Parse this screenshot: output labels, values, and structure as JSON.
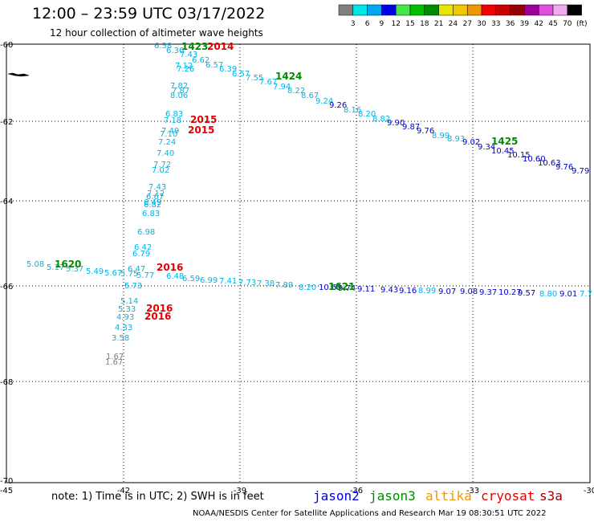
{
  "title": "12:00 – 23:59 UTC 03/17/2022",
  "subtitle": "12 hour collection of altimeter wave heights",
  "colorbar": {
    "colors": [
      "#808080",
      "#00e6e6",
      "#00a8f0",
      "#0000e6",
      "#46e646",
      "#00bf00",
      "#008c00",
      "#e6e600",
      "#f0c800",
      "#f09600",
      "#f00000",
      "#c80000",
      "#960000",
      "#9b009b",
      "#dc50dc",
      "#f0aaf0",
      "#000000"
    ],
    "ticks": [
      "3",
      "6",
      "9",
      "12",
      "15",
      "18",
      "21",
      "24",
      "27",
      "30",
      "33",
      "36",
      "39",
      "42",
      "45",
      "70"
    ],
    "unit": "(ft)"
  },
  "axes": {
    "lon_ticks": [
      "-45",
      "-42",
      "-39",
      "-36",
      "-33",
      "-30"
    ],
    "lat_ticks": [
      "-60",
      "-62",
      "-64",
      "-66",
      "-68",
      "-70"
    ]
  },
  "tracks": [
    {
      "label": "1423",
      "label_color": "#008c00",
      "label2": "2014",
      "label2_color": "#e60000",
      "points": [
        {
          "v": "6.38",
          "c": "#00b4e6"
        },
        {
          "v": "6.36",
          "c": "#00b4e6"
        },
        {
          "v": "7.43",
          "c": "#00b4e6"
        },
        {
          "v": "6.62",
          "c": "#00b4e6"
        },
        {
          "v": "7.12",
          "c": "#00b4e6"
        },
        {
          "v": "7.26",
          "c": "#00b4e6"
        }
      ]
    },
    {
      "label": "1424",
      "label_color": "#008c00",
      "points": [
        {
          "v": "6.57",
          "c": "#00b4e6"
        },
        {
          "v": "6.39",
          "c": "#00b4e6"
        },
        {
          "v": "6.57",
          "c": "#00b4e6"
        },
        {
          "v": "7.55",
          "c": "#00b4e6"
        },
        {
          "v": "7.67",
          "c": "#00b4e6"
        },
        {
          "v": "7.94",
          "c": "#00b4e6"
        },
        {
          "v": "8.22",
          "c": "#00b4e6"
        },
        {
          "v": "8.67",
          "c": "#00b4e6"
        },
        {
          "v": "9.24",
          "c": "#00b4e6"
        },
        {
          "v": "9.26",
          "c": "#0000c8"
        },
        {
          "v": "8.16",
          "c": "#00b4e6"
        },
        {
          "v": "8.20",
          "c": "#00b4e6"
        },
        {
          "v": "8.82",
          "c": "#00b4e6"
        },
        {
          "v": "9.90",
          "c": "#0000c8"
        },
        {
          "v": "9.87",
          "c": "#0000c8"
        },
        {
          "v": "9.76",
          "c": "#0000c8"
        },
        {
          "v": "8.99",
          "c": "#00b4e6"
        },
        {
          "v": "8.93",
          "c": "#00b4e6"
        },
        {
          "v": "9.02",
          "c": "#0000c8"
        }
      ]
    },
    {
      "label": "1425",
      "label_color": "#008c00",
      "points": [
        {
          "v": "9.34",
          "c": "#0000c8"
        },
        {
          "v": "10.45",
          "c": "#0000c8"
        },
        {
          "v": "10.15",
          "c": "#0000c8"
        },
        {
          "v": "10.60",
          "c": "#0000c8"
        },
        {
          "v": "10.63",
          "c": "#0000c8"
        },
        {
          "v": "9.76",
          "c": "#0000c8"
        },
        {
          "v": "9.79",
          "c": "#0000c8"
        }
      ]
    },
    {
      "label": "2015",
      "label_color": "#e60000",
      "label2": "2015",
      "label2_color": "#e60000",
      "points": [
        {
          "v": "7.82",
          "c": "#00b4e6"
        },
        {
          "v": "7.87",
          "c": "#00b4e6"
        },
        {
          "v": "8.06",
          "c": "#00b4e6"
        },
        {
          "v": "6.83",
          "c": "#00b4e6"
        },
        {
          "v": "7.18",
          "c": "#00b4e6"
        },
        {
          "v": "7.49",
          "c": "#00b4e6"
        },
        {
          "v": "7.10",
          "c": "#00b4e6"
        },
        {
          "v": "7.24",
          "c": "#00b4e6"
        },
        {
          "v": "7.40",
          "c": "#00b4e6"
        },
        {
          "v": "7.72",
          "c": "#00b4e6"
        },
        {
          "v": "7.02",
          "c": "#00b4e6"
        },
        {
          "v": "7.43",
          "c": "#00b4e6"
        },
        {
          "v": "7.12",
          "c": "#00b4e6"
        },
        {
          "v": "6.67",
          "c": "#00b4e6"
        },
        {
          "v": "6.49",
          "c": "#00b4e6"
        },
        {
          "v": "6.82",
          "c": "#00b4e6"
        },
        {
          "v": "6.83",
          "c": "#00b4e6"
        },
        {
          "v": "6.98",
          "c": "#00b4e6"
        },
        {
          "v": "6.42",
          "c": "#00b4e6"
        },
        {
          "v": "6.79",
          "c": "#00b4e6"
        }
      ]
    },
    {
      "label": "1620",
      "label_color": "#008c00",
      "label2": "2016",
      "label2_color": "#e60000",
      "points": [
        {
          "v": "5.08",
          "c": "#00b4e6"
        },
        {
          "v": "5.17",
          "c": "#00b4e6"
        },
        {
          "v": "5.37",
          "c": "#00b4e6"
        },
        {
          "v": "5.49",
          "c": "#00b4e6"
        },
        {
          "v": "5.67",
          "c": "#00b4e6"
        },
        {
          "v": "5.75",
          "c": "#00b4e6"
        },
        {
          "v": "5.77",
          "c": "#00b4e6"
        },
        {
          "v": "6.47",
          "c": "#00b4e6"
        },
        {
          "v": "6.48",
          "c": "#00b4e6"
        },
        {
          "v": "6.59",
          "c": "#00b4e6"
        },
        {
          "v": "6.99",
          "c": "#00b4e6"
        },
        {
          "v": "7.41",
          "c": "#00b4e6"
        },
        {
          "v": "7.73",
          "c": "#00b4e6"
        },
        {
          "v": "7.38",
          "c": "#00b4e6"
        },
        {
          "v": "7.89",
          "c": "#00b4e6"
        },
        {
          "v": "8.20",
          "c": "#00b4e6"
        },
        {
          "v": "10.63",
          "c": "#0000c8"
        },
        {
          "v": "9.74",
          "c": "#0000c8"
        },
        {
          "v": "9.11",
          "c": "#0000c8"
        },
        {
          "v": "9.43",
          "c": "#0000c8"
        },
        {
          "v": "9.16",
          "c": "#0000c8"
        },
        {
          "v": "8.99",
          "c": "#00b4e6"
        },
        {
          "v": "9.07",
          "c": "#0000c8"
        },
        {
          "v": "9.08",
          "c": "#0000c8"
        },
        {
          "v": "9.37",
          "c": "#0000c8"
        },
        {
          "v": "10.27",
          "c": "#0000c8"
        },
        {
          "v": "9.57",
          "c": "#0000c8"
        },
        {
          "v": "8.80",
          "c": "#00b4e6"
        },
        {
          "v": "9.01",
          "c": "#0000c8"
        },
        {
          "v": "7.7",
          "c": "#00b4e6"
        }
      ]
    },
    {
      "label": "1621",
      "label_color": "#008c00",
      "points": []
    },
    {
      "label": "2016",
      "label_color": "#e60000",
      "label2": "2016",
      "label2_color": "#e60000",
      "points": [
        {
          "v": "5.73",
          "c": "#00b4e6"
        },
        {
          "v": "5.14",
          "c": "#00b4e6"
        },
        {
          "v": "5.33",
          "c": "#00b4e6"
        },
        {
          "v": "4.93",
          "c": "#00b4e6"
        },
        {
          "v": "4.33",
          "c": "#00b4e6"
        },
        {
          "v": "3.58",
          "c": "#00b4e6"
        },
        {
          "v": "1.67",
          "c": "#808080"
        },
        {
          "v": "1.67",
          "c": "#808080"
        }
      ]
    }
  ],
  "note": "note: 1) Time is in UTC; 2) SWH is in feet",
  "satellites": [
    {
      "name": "jason2",
      "color": "#0000e6"
    },
    {
      "name": "jason3",
      "color": "#008c00"
    },
    {
      "name": "altika",
      "color": "#f09600"
    },
    {
      "name": "cryosat",
      "color": "#e60000"
    },
    {
      "name": "s3a",
      "color": "#9b0000"
    }
  ],
  "footer": "NOAA/NESDIS Center for Satellite Applications and Research   Mar 19 08:30:51 UTC 2022"
}
